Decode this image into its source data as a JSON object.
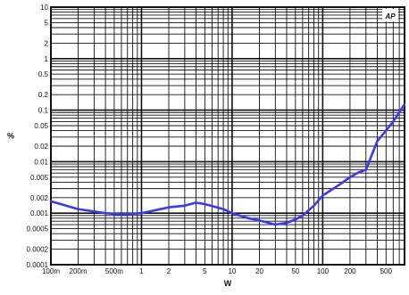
{
  "chart_data": {
    "type": "line",
    "title": "",
    "xlabel": "W",
    "ylabel": "%",
    "xscale": "log",
    "yscale": "log",
    "xlim": [
      0.1,
      800
    ],
    "ylim": [
      0.0001,
      10
    ],
    "grid": true,
    "legend": "none",
    "x_tick_labels": [
      "100m",
      "200m",
      "500m",
      "1",
      "2",
      "5",
      "10",
      "20",
      "50",
      "100",
      "200",
      "500"
    ],
    "y_tick_labels": [
      "10",
      "5",
      "2",
      "1",
      "0.5",
      "0.2",
      "0.1",
      "0.05",
      "0.02",
      "0.01",
      "0.005",
      "0.002",
      "0.001",
      "0.0005",
      "0.0002",
      "0.0001"
    ],
    "series": [
      {
        "color": "#3a3af0",
        "x": [
          0.1,
          0.2,
          0.4,
          0.6,
          1,
          2,
          3,
          4,
          5,
          8,
          10,
          15,
          20,
          30,
          40,
          50,
          60,
          80,
          100,
          150,
          200,
          250,
          300,
          400,
          600,
          800
        ],
        "y": [
          0.0017,
          0.0012,
          0.001,
          0.00095,
          0.001,
          0.0013,
          0.0014,
          0.0016,
          0.0015,
          0.0012,
          0.001,
          0.0008,
          0.00072,
          0.0006,
          0.00065,
          0.00075,
          0.0009,
          0.0014,
          0.0022,
          0.0035,
          0.005,
          0.0062,
          0.007,
          0.025,
          0.06,
          0.13
        ]
      }
    ]
  },
  "logo_text": "AP",
  "colors": {
    "grid": "#111111",
    "plot_bg": "#ffffff",
    "line": "#3a3af0",
    "logo": "#2a86c8"
  }
}
